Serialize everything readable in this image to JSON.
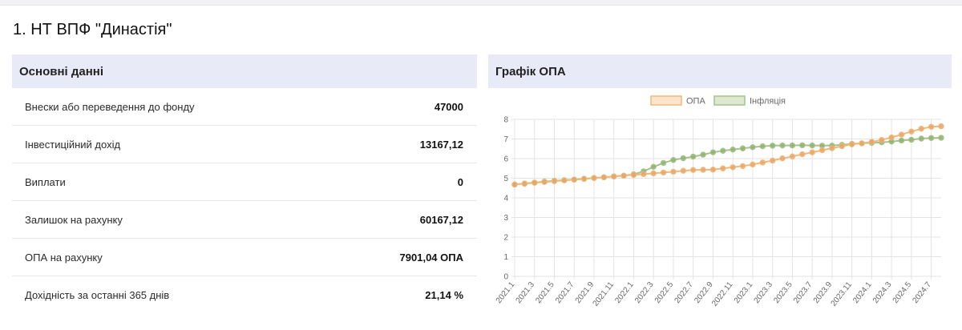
{
  "page": {
    "title": "1. НТ ВПФ \"Династія\""
  },
  "main_info": {
    "header": "Основні данні",
    "rows": [
      {
        "label": "Внески або переведення до фонду",
        "value": "47000"
      },
      {
        "label": "Інвестиційний дохід",
        "value": "13167,12"
      },
      {
        "label": "Виплати",
        "value": "0"
      },
      {
        "label": "Залишок на рахунку",
        "value": "60167,12"
      },
      {
        "label": "ОПА на рахунку",
        "value": "7901,04 ОПА"
      },
      {
        "label": "Дохідність за останні 365 днів",
        "value": "21,14 %"
      }
    ]
  },
  "chart_panel": {
    "header": "Графік ОПА"
  },
  "colors": {
    "opa_line": "#f2b87a",
    "opa_point": "#e8a56a",
    "inflation_line": "#a6c28c",
    "inflation_point": "#8fb06f",
    "grid": "#e3e3e3",
    "axis_text": "#666666"
  },
  "chart_data": {
    "type": "line",
    "ylim": [
      0,
      8
    ],
    "y_ticks": [
      "0",
      "1",
      "2",
      "3",
      "4",
      "5",
      "6",
      "7",
      "8"
    ],
    "grid": true,
    "legend_position": "top-center",
    "x": [
      "2021.1",
      "2021.2",
      "2021.3",
      "2021.4",
      "2021.5",
      "2021.6",
      "2021.7",
      "2021.8",
      "2021.9",
      "2021.10",
      "2021.11",
      "2021.12",
      "2022.1",
      "2022.2",
      "2022.3",
      "2022.4",
      "2022.5",
      "2022.6",
      "2022.7",
      "2022.8",
      "2022.9",
      "2022.10",
      "2022.11",
      "2022.12",
      "2023.1",
      "2023.2",
      "2023.3",
      "2023.4",
      "2023.5",
      "2023.6",
      "2023.7",
      "2023.8",
      "2023.9",
      "2023.10",
      "2023.11",
      "2023.12",
      "2024.1",
      "2024.2",
      "2024.3",
      "2024.4",
      "2024.5",
      "2024.6",
      "2024.7",
      "2024.8"
    ],
    "x_tick_labels": [
      "2021.1",
      "2021.3",
      "2021.5",
      "2021.7",
      "2021.9",
      "2021.11",
      "2022.1",
      "2022.3",
      "2022.5",
      "2022.7",
      "2022.9",
      "2022.11",
      "2023.1",
      "2023.3",
      "2023.5",
      "2023.7",
      "2023.9",
      "2023.11",
      "2024.1",
      "2024.3",
      "2024.5",
      "2024.7"
    ],
    "series": [
      {
        "name": "ОПА",
        "values": [
          4.68,
          4.72,
          4.77,
          4.81,
          4.85,
          4.89,
          4.93,
          4.97,
          5.01,
          5.05,
          5.09,
          5.13,
          5.17,
          5.21,
          5.25,
          5.29,
          5.33,
          5.38,
          5.42,
          5.43,
          5.44,
          5.5,
          5.56,
          5.62,
          5.7,
          5.8,
          5.9,
          6.01,
          6.11,
          6.22,
          6.32,
          6.43,
          6.53,
          6.63,
          6.73,
          6.78,
          6.85,
          6.95,
          7.08,
          7.22,
          7.38,
          7.52,
          7.62,
          7.65
        ]
      },
      {
        "name": "Інфляція",
        "values": [
          4.68,
          4.73,
          4.78,
          4.83,
          4.87,
          4.9,
          4.93,
          4.97,
          5.01,
          5.05,
          5.09,
          5.13,
          5.2,
          5.35,
          5.58,
          5.78,
          5.93,
          6.02,
          6.1,
          6.2,
          6.32,
          6.4,
          6.46,
          6.52,
          6.58,
          6.63,
          6.66,
          6.67,
          6.67,
          6.68,
          6.67,
          6.66,
          6.66,
          6.7,
          6.75,
          6.78,
          6.8,
          6.83,
          6.87,
          6.92,
          6.96,
          7.02,
          7.05,
          7.06
        ]
      }
    ]
  }
}
